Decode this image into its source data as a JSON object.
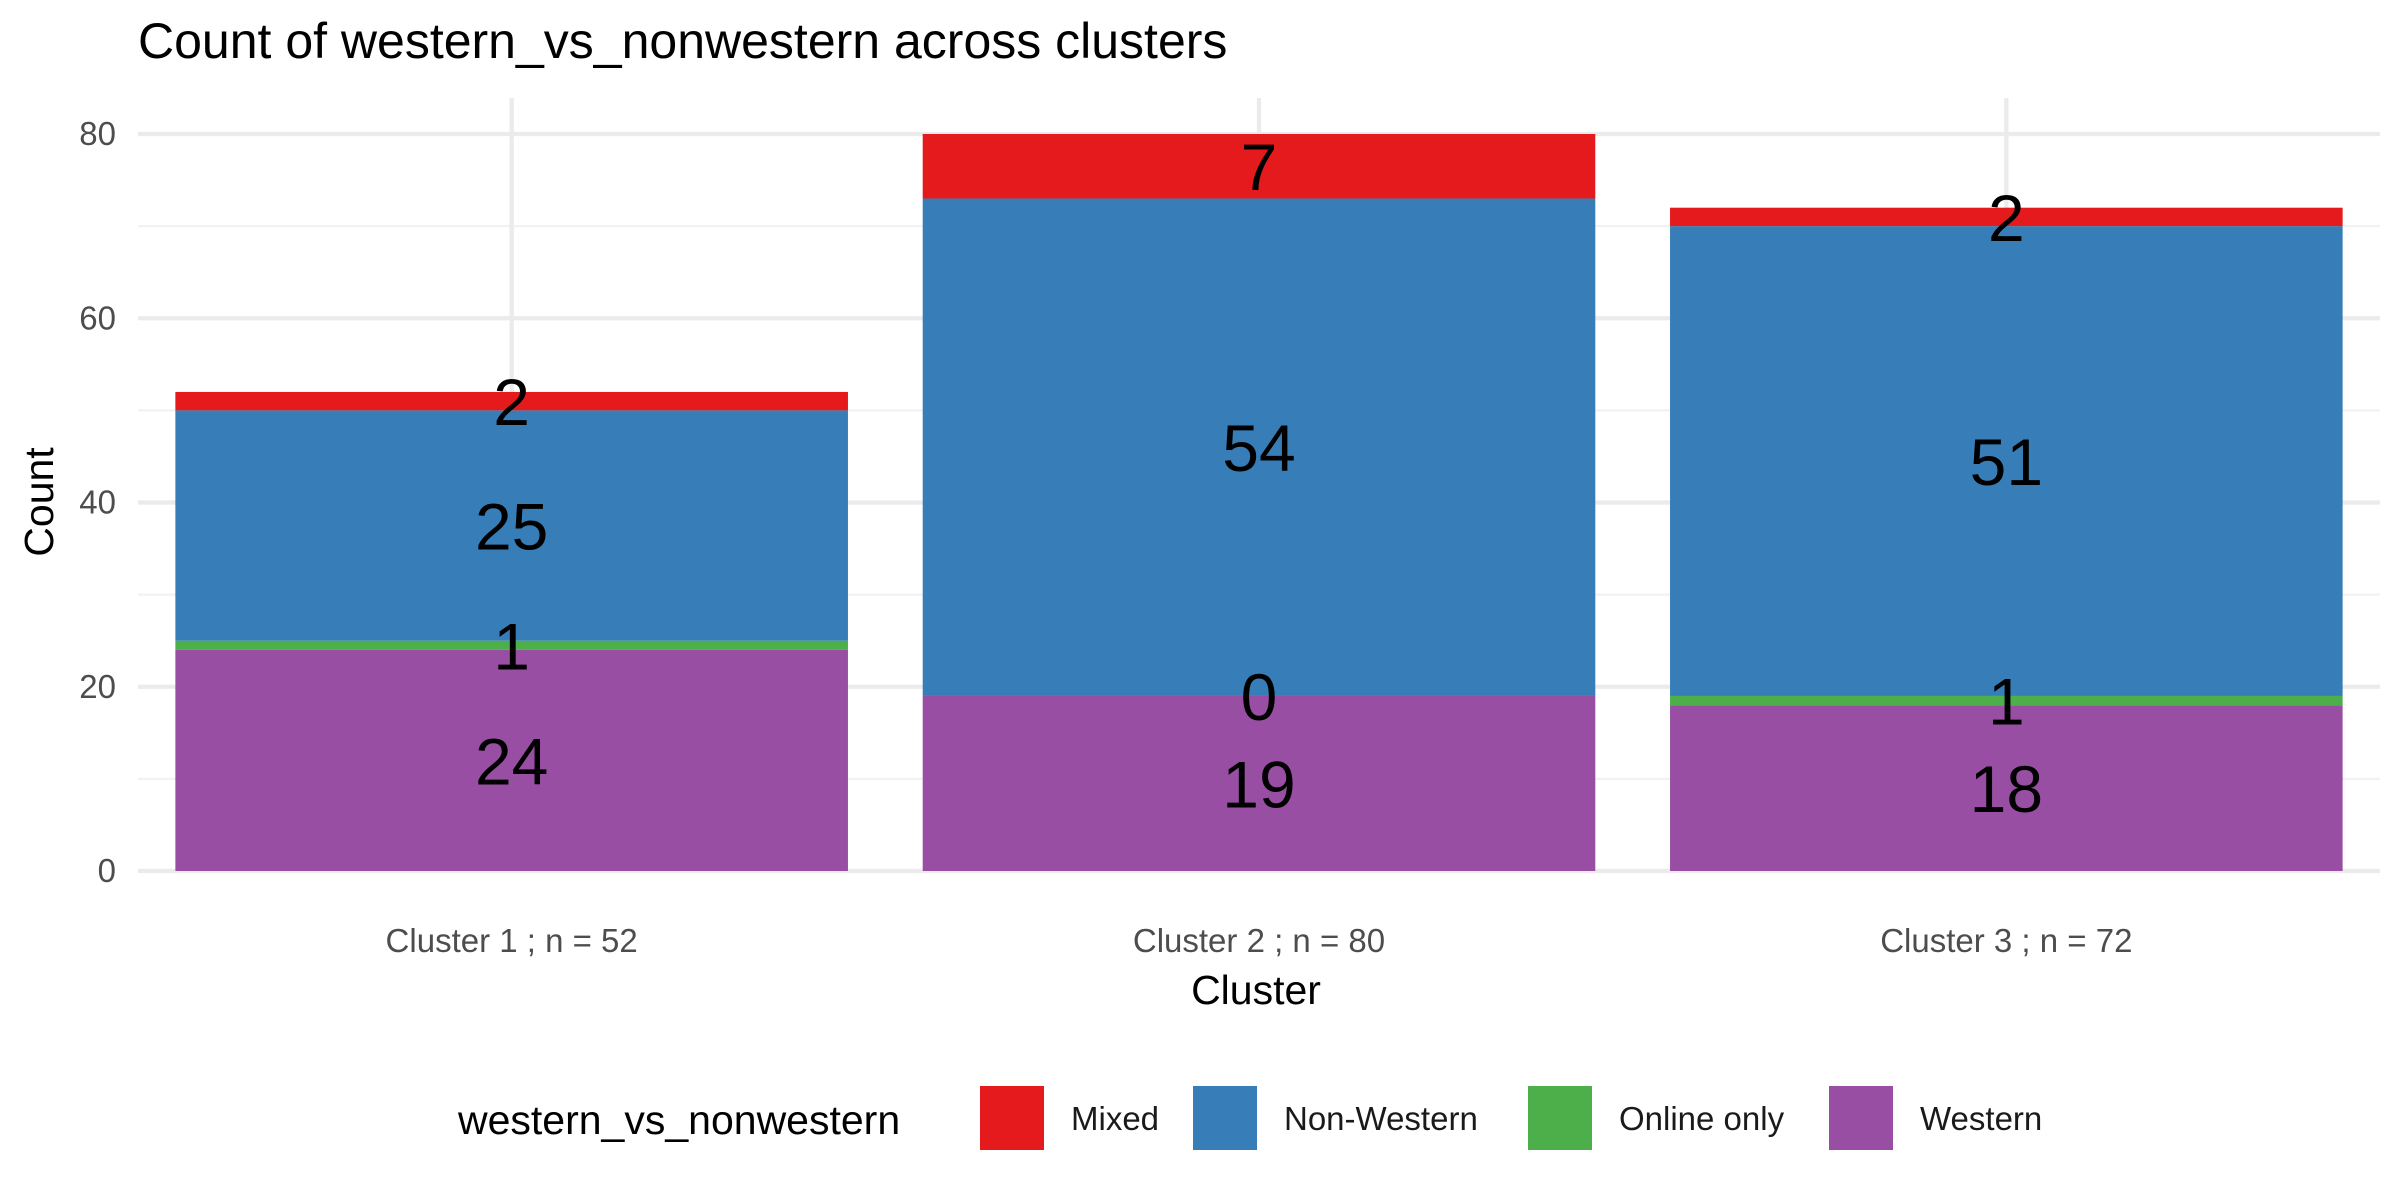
{
  "chart_data": {
    "type": "bar",
    "stacked": true,
    "title": "Count of western_vs_nonwestern across clusters",
    "xlabel": "Cluster",
    "ylabel": "Count",
    "ylim": [
      0,
      82
    ],
    "yticks": [
      0,
      20,
      40,
      60,
      80
    ],
    "grid": true,
    "categories": [
      "Cluster 1 ; n = 52",
      "Cluster 2 ; n = 80",
      "Cluster 3 ; n = 72"
    ],
    "series": [
      {
        "name": "Western",
        "color": "#984EA3",
        "values": [
          24,
          19,
          18
        ]
      },
      {
        "name": "Online only",
        "color": "#4DAF4A",
        "values": [
          1,
          0,
          1
        ]
      },
      {
        "name": "Non-Western",
        "color": "#377EB8",
        "values": [
          25,
          54,
          51
        ]
      },
      {
        "name": "Mixed",
        "color": "#E41A1C",
        "values": [
          2,
          7,
          2
        ]
      }
    ],
    "legend": {
      "title": "western_vs_nonwestern",
      "position": "bottom",
      "order": [
        "Mixed",
        "Non-Western",
        "Online only",
        "Western"
      ]
    }
  }
}
